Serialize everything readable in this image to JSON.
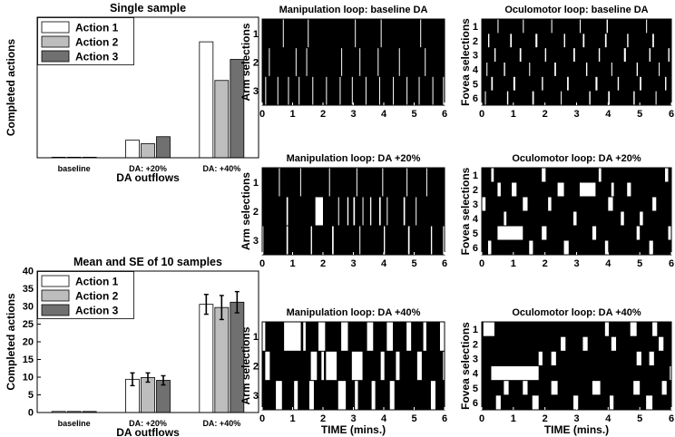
{
  "chart_data": [
    {
      "id": "bar1",
      "type": "bar",
      "title": "Single sample",
      "xlabel": "DA outflows",
      "ylabel": "Completed actions",
      "categories": [
        "baseline",
        "DA: +20%",
        "DA: +40%"
      ],
      "ylim": [
        0,
        40
      ],
      "legend": "top-left",
      "series": [
        {
          "name": "Action 1",
          "color": "#ffffff",
          "values": [
            0,
            5,
            33
          ]
        },
        {
          "name": "Action 2",
          "color": "#bdbdbd",
          "values": [
            0,
            4,
            22
          ]
        },
        {
          "name": "Action 3",
          "color": "#707070",
          "values": [
            0,
            6,
            28
          ]
        }
      ]
    },
    {
      "id": "bar2",
      "type": "bar",
      "title": "Mean and SE of 10 samples",
      "xlabel": "DA outflows",
      "ylabel": "Completed actions",
      "categories": [
        "baseline",
        "DA: +20%",
        "DA: +40%"
      ],
      "ylim": [
        0,
        40
      ],
      "yticks": [
        0,
        5,
        10,
        15,
        20,
        25,
        30,
        35,
        40
      ],
      "legend": "top-left",
      "series": [
        {
          "name": "Action 1",
          "color": "#ffffff",
          "values": [
            0.3,
            9.4,
            30.6
          ],
          "errors": [
            0,
            1.8,
            2.8
          ]
        },
        {
          "name": "Action 2",
          "color": "#bdbdbd",
          "values": [
            0.3,
            9.9,
            29.7
          ],
          "errors": [
            0,
            1.3,
            3.4
          ]
        },
        {
          "name": "Action 3",
          "color": "#707070",
          "values": [
            0.3,
            9.1,
            31.2
          ],
          "errors": [
            0,
            1.3,
            3.0
          ]
        }
      ]
    },
    {
      "id": "r1",
      "type": "heatmap",
      "title": "Manipulation loop: baseline DA",
      "ylabel": "Arm selections",
      "xlabel": "",
      "rows": [
        "1",
        "2",
        "3"
      ],
      "xlim": [
        0,
        6
      ],
      "xticks": [
        0,
        1,
        2,
        3,
        4,
        5,
        6
      ],
      "events": [
        [
          [
            0.68,
            0.02
          ],
          [
            1.5,
            0.02
          ],
          [
            3.05,
            0.02
          ],
          [
            3.9,
            0.02
          ],
          [
            5.2,
            0.02
          ]
        ],
        [
          [
            0.22,
            0.02
          ],
          [
            1.1,
            0.02
          ],
          [
            1.45,
            0.02
          ],
          [
            2.6,
            0.02
          ],
          [
            3.2,
            0.02
          ],
          [
            3.8,
            0.02
          ],
          [
            4.5,
            0.02
          ],
          [
            5.35,
            0.02
          ]
        ],
        [
          [
            0.1,
            0.03
          ],
          [
            0.5,
            0.02
          ],
          [
            0.85,
            0.03
          ],
          [
            1.2,
            0.02
          ],
          [
            1.65,
            0.02
          ],
          [
            2.1,
            0.02
          ],
          [
            2.55,
            0.02
          ],
          [
            2.95,
            0.02
          ],
          [
            3.4,
            0.02
          ],
          [
            3.85,
            0.02
          ],
          [
            4.3,
            0.02
          ],
          [
            4.75,
            0.02
          ],
          [
            5.15,
            0.02
          ],
          [
            5.6,
            0.02
          ],
          [
            5.95,
            0.02
          ]
        ]
      ]
    },
    {
      "id": "r2",
      "type": "heatmap",
      "title": "Oculomotor loop: baseline DA",
      "ylabel": "Fovea selections",
      "xlabel": "",
      "rows": [
        "1",
        "2",
        "3",
        "4",
        "5",
        "6"
      ],
      "xlim": [
        0,
        6
      ],
      "xticks": [
        0,
        1,
        2,
        3,
        4,
        5,
        6
      ],
      "events": [
        [
          [
            0.5,
            0.03
          ],
          [
            1.3,
            0.03
          ],
          [
            2.2,
            0.03
          ],
          [
            3.1,
            0.03
          ],
          [
            3.95,
            0.04
          ],
          [
            5.2,
            0.03
          ]
        ],
        [
          [
            0.2,
            0.04
          ],
          [
            0.9,
            0.05
          ],
          [
            1.7,
            0.06
          ],
          [
            2.6,
            0.04
          ],
          [
            3.2,
            0.05
          ],
          [
            3.9,
            0.05
          ],
          [
            4.6,
            0.04
          ],
          [
            5.4,
            0.05
          ]
        ],
        [
          [
            0.4,
            0.04
          ],
          [
            1.2,
            0.05
          ],
          [
            2.0,
            0.04
          ],
          [
            2.9,
            0.05
          ],
          [
            3.7,
            0.04
          ],
          [
            4.5,
            0.06
          ],
          [
            5.3,
            0.04
          ],
          [
            5.9,
            0.04
          ]
        ],
        [
          [
            0.15,
            0.03
          ],
          [
            0.7,
            0.04
          ],
          [
            1.5,
            0.03
          ],
          [
            2.3,
            0.05
          ],
          [
            3.3,
            0.04
          ],
          [
            4.1,
            0.03
          ],
          [
            4.9,
            0.04
          ],
          [
            5.6,
            0.03
          ]
        ],
        [
          [
            0.3,
            0.05
          ],
          [
            1.0,
            0.06
          ],
          [
            1.9,
            0.04
          ],
          [
            2.7,
            0.05
          ],
          [
            3.6,
            0.06
          ],
          [
            4.3,
            0.04
          ],
          [
            5.0,
            0.05
          ],
          [
            5.8,
            0.04
          ]
        ],
        [
          [
            0.1,
            0.03
          ],
          [
            0.8,
            0.04
          ],
          [
            1.6,
            0.05
          ],
          [
            2.5,
            0.03
          ],
          [
            3.4,
            0.04
          ],
          [
            4.0,
            0.05
          ],
          [
            4.8,
            0.04
          ],
          [
            5.5,
            0.03
          ]
        ]
      ]
    },
    {
      "id": "r3",
      "type": "heatmap",
      "title": "Manipulation loop: DA +20%",
      "ylabel": "Arm selections",
      "xlabel": "",
      "rows": [
        "1",
        "2",
        "3"
      ],
      "xlim": [
        0,
        6
      ],
      "xticks": [
        0,
        1,
        2,
        3,
        4,
        5,
        6
      ],
      "events": [
        [
          [
            0.55,
            0.03
          ],
          [
            1.25,
            0.02
          ],
          [
            2.2,
            0.03
          ],
          [
            3.1,
            0.02
          ],
          [
            3.95,
            0.03
          ],
          [
            4.75,
            0.02
          ],
          [
            5.4,
            0.02
          ]
        ],
        [
          [
            0.8,
            0.05
          ],
          [
            1.75,
            0.25
          ],
          [
            2.5,
            0.03
          ],
          [
            2.8,
            0.04
          ],
          [
            3.0,
            0.05
          ],
          [
            3.3,
            0.03
          ],
          [
            3.55,
            0.04
          ],
          [
            3.85,
            0.05
          ],
          [
            4.1,
            0.03
          ],
          [
            4.65,
            0.05
          ],
          [
            5.05,
            0.03
          ]
        ],
        [
          [
            0.0,
            0.04
          ],
          [
            0.8,
            0.05
          ],
          [
            1.6,
            0.04
          ],
          [
            2.3,
            0.05
          ],
          [
            3.2,
            0.03
          ],
          [
            4.0,
            0.04
          ],
          [
            4.8,
            0.05
          ],
          [
            5.55,
            0.04
          ],
          [
            5.95,
            0.04
          ]
        ]
      ]
    },
    {
      "id": "r4",
      "type": "heatmap",
      "title": "Oculomotor loop: DA +20%",
      "ylabel": "Fovea selections",
      "xlabel": "",
      "rows": [
        "1",
        "2",
        "3",
        "4",
        "5",
        "6"
      ],
      "xlim": [
        0,
        6
      ],
      "xticks": [
        0,
        1,
        2,
        3,
        4,
        5,
        6
      ],
      "events": [
        [
          [
            0.3,
            0.08
          ],
          [
            1.9,
            0.12
          ],
          [
            3.7,
            0.08
          ],
          [
            5.8,
            0.1
          ]
        ],
        [
          [
            0.5,
            0.1
          ],
          [
            0.95,
            0.15
          ],
          [
            2.4,
            0.2
          ],
          [
            3.1,
            0.5
          ],
          [
            4.1,
            0.08
          ],
          [
            4.6,
            0.12
          ]
        ],
        [
          [
            0.0,
            0.12
          ],
          [
            1.3,
            0.15
          ],
          [
            2.1,
            0.1
          ],
          [
            4.0,
            0.15
          ],
          [
            5.4,
            0.12
          ]
        ],
        [
          [
            0.7,
            0.08
          ],
          [
            2.9,
            0.1
          ],
          [
            4.4,
            0.1
          ],
          [
            5.0,
            0.1
          ]
        ],
        [
          [
            0.5,
            0.8
          ],
          [
            1.9,
            0.15
          ],
          [
            3.5,
            0.12
          ],
          [
            4.9,
            0.1
          ],
          [
            5.9,
            0.1
          ]
        ],
        [
          [
            0.2,
            0.1
          ],
          [
            1.5,
            0.12
          ],
          [
            2.6,
            0.15
          ],
          [
            3.9,
            0.1
          ],
          [
            5.3,
            0.12
          ]
        ]
      ]
    },
    {
      "id": "r5",
      "type": "heatmap",
      "title": "Manipulation loop: DA +40%",
      "ylabel": "Arm selections",
      "xlabel": "TIME  (mins.)",
      "rows": [
        "1",
        "2",
        "3"
      ],
      "xlim": [
        0,
        6
      ],
      "xticks": [
        0,
        1,
        2,
        3,
        4,
        5,
        6
      ],
      "events": [
        [
          [
            0.0,
            0.1
          ],
          [
            0.72,
            0.55
          ],
          [
            1.35,
            0.08
          ],
          [
            1.85,
            0.22
          ],
          [
            2.6,
            0.22
          ],
          [
            3.45,
            0.2
          ],
          [
            4.1,
            0.2
          ],
          [
            4.75,
            0.15
          ],
          [
            5.3,
            0.1
          ],
          [
            5.85,
            0.15
          ]
        ],
        [
          [
            0.1,
            0.15
          ],
          [
            1.6,
            0.2
          ],
          [
            1.95,
            0.08
          ],
          [
            2.1,
            0.35
          ],
          [
            2.95,
            0.35
          ],
          [
            3.9,
            0.12
          ],
          [
            4.4,
            0.12
          ],
          [
            5.1,
            0.15
          ],
          [
            5.95,
            0.05
          ]
        ],
        [
          [
            0.45,
            0.2
          ],
          [
            1.05,
            0.12
          ],
          [
            1.55,
            0.15
          ],
          [
            2.5,
            0.25
          ],
          [
            3.05,
            0.1
          ],
          [
            3.6,
            0.12
          ],
          [
            4.2,
            0.15
          ],
          [
            5.55,
            0.15
          ]
        ]
      ]
    },
    {
      "id": "r6",
      "type": "heatmap",
      "title": "Oculomotor loop: DA +40%",
      "ylabel": "Fovea selections",
      "xlabel": "TIME  (mins.)",
      "rows": [
        "1",
        "2",
        "3",
        "4",
        "5",
        "6"
      ],
      "xlim": [
        0,
        6
      ],
      "xticks": [
        0,
        1,
        2,
        3,
        4,
        5,
        6
      ],
      "events": [
        [
          [
            0.05,
            0.35
          ],
          [
            3.9,
            0.12
          ],
          [
            4.7,
            0.2
          ],
          [
            5.4,
            0.15
          ]
        ],
        [
          [
            2.5,
            0.15
          ],
          [
            3.2,
            0.15
          ],
          [
            4.1,
            0.15
          ],
          [
            5.6,
            0.15
          ]
        ],
        [
          [
            1.8,
            0.12
          ],
          [
            2.2,
            0.15
          ],
          [
            4.9,
            0.15
          ],
          [
            5.3,
            0.15
          ]
        ],
        [
          [
            0.3,
            1.5
          ],
          [
            5.95,
            0.05
          ]
        ],
        [
          [
            0.7,
            0.15
          ],
          [
            1.3,
            0.15
          ],
          [
            2.2,
            0.2
          ],
          [
            3.5,
            0.25
          ],
          [
            4.8,
            0.2
          ],
          [
            5.7,
            0.15
          ]
        ],
        [
          [
            0.45,
            0.15
          ],
          [
            1.6,
            0.2
          ],
          [
            2.9,
            0.15
          ],
          [
            4.05,
            0.12
          ],
          [
            5.2,
            0.2
          ]
        ]
      ]
    }
  ]
}
